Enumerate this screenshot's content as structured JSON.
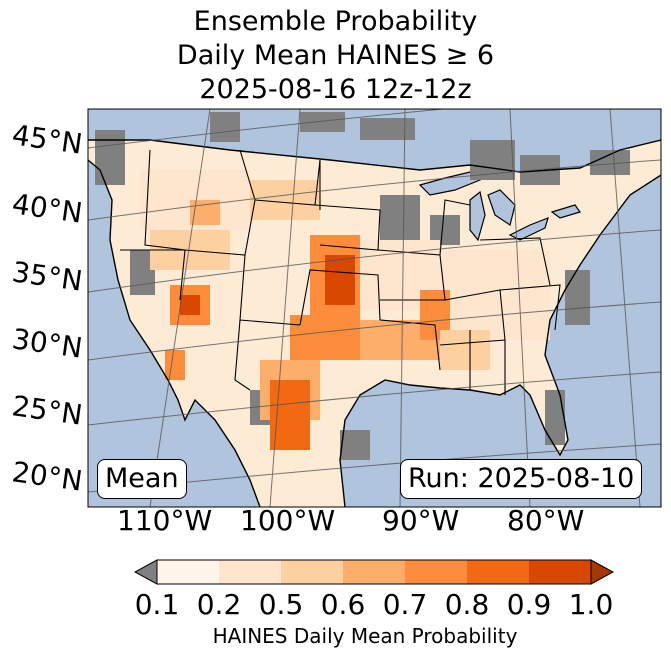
{
  "title": {
    "line1": "Ensemble Probability",
    "line2": "Daily Mean HAINES ≥ 6",
    "line3": "2025-08-16 12z-12z"
  },
  "map": {
    "latitude_labels": [
      "45°N",
      "40°N",
      "35°N",
      "30°N",
      "25°N",
      "20°N"
    ],
    "longitude_labels": [
      "110°W",
      "100°W",
      "90°W",
      "80°W"
    ],
    "stat_label": "Mean",
    "run_label": "Run: 2025-08-10",
    "ocean_color": "#b0c4de",
    "missing_color": "#808080"
  },
  "colorbar": {
    "label": "HAINES Daily Mean Probability",
    "ticks": [
      "0.1",
      "0.2",
      "0.5",
      "0.6",
      "0.7",
      "0.8",
      "0.9",
      "1.0"
    ],
    "colors": [
      "#fff5eb",
      "#fee6ce",
      "#fdd0a2",
      "#fdae6b",
      "#fd8d3c",
      "#f16913",
      "#d94801",
      "#a63603"
    ],
    "under_color": "#808080"
  }
}
